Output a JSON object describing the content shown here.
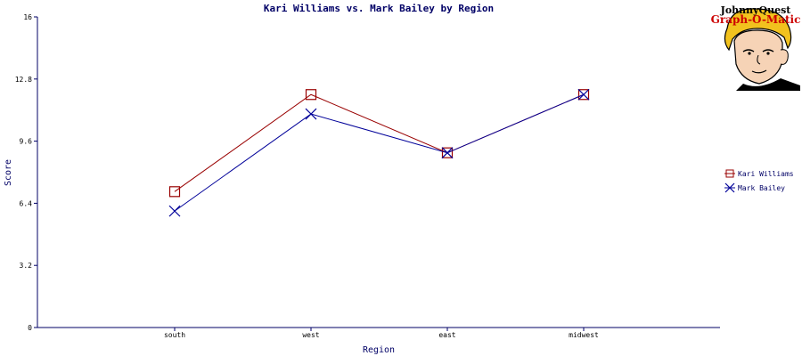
{
  "chart_data": {
    "type": "line",
    "title": "Kari Williams vs. Mark Bailey by Region",
    "xlabel": "Region",
    "ylabel": "Score",
    "categories": [
      "south",
      "west",
      "east",
      "midwest"
    ],
    "ylim": [
      0,
      16
    ],
    "yticks": [
      "0",
      "3.2",
      "6.4",
      "9.6",
      "12.8",
      "16"
    ],
    "grid": false,
    "legend_position": "right",
    "series": [
      {
        "name": "Kari Williams",
        "values": [
          7.0,
          12.0,
          9.0,
          12.0
        ],
        "color": "#990000",
        "marker": "square"
      },
      {
        "name": "Mark Bailey",
        "values": [
          6.0,
          11.0,
          9.0,
          12.0
        ],
        "color": "#000099",
        "marker": "x"
      }
    ]
  },
  "logo": {
    "line1": "JohnnyQuest",
    "line2": "Graph-O-Matic"
  }
}
